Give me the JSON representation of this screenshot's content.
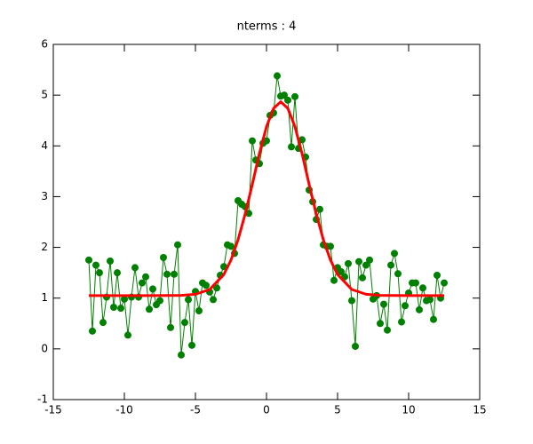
{
  "chart_data": {
    "type": "line",
    "title": "nterms : 4",
    "xlim": [
      -15,
      15
    ],
    "ylim": [
      -1,
      6
    ],
    "xticks": [
      -15,
      -10,
      -5,
      0,
      5,
      10,
      15
    ],
    "yticks": [
      -1,
      0,
      1,
      2,
      3,
      4,
      5,
      6
    ],
    "series": [
      {
        "color": "#008000",
        "marker": "circle",
        "x": [
          -12.5,
          -12.25,
          -12,
          -11.75,
          -11.5,
          -11.25,
          -11,
          -10.75,
          -10.5,
          -10.25,
          -10,
          -9.75,
          -9.5,
          -9.25,
          -9,
          -8.75,
          -8.5,
          -8.25,
          -8,
          -7.75,
          -7.5,
          -7.25,
          -7,
          -6.75,
          -6.5,
          -6.25,
          -6,
          -5.75,
          -5.5,
          -5.25,
          -5,
          -4.75,
          -4.5,
          -4.25,
          -4,
          -3.75,
          -3.5,
          -3.25,
          -3,
          -2.75,
          -2.5,
          -2.25,
          -2,
          -1.75,
          -1.5,
          -1.25,
          -1,
          -0.75,
          -0.5,
          -0.25,
          0,
          0.25,
          0.5,
          0.75,
          1,
          1.25,
          1.5,
          1.75,
          2,
          2.25,
          2.5,
          2.75,
          3,
          3.25,
          3.5,
          3.75,
          4,
          4.25,
          4.5,
          4.75,
          5,
          5.25,
          5.5,
          5.75,
          6,
          6.25,
          6.5,
          6.75,
          7,
          7.25,
          7.5,
          7.75,
          8,
          8.25,
          8.5,
          8.75,
          9,
          9.25,
          9.5,
          9.75,
          10,
          10.25,
          10.5,
          10.75,
          11,
          11.25,
          11.5,
          11.75,
          12,
          12.25,
          12.5
        ],
        "values": [
          1.75,
          0.35,
          1.65,
          1.5,
          0.52,
          1.02,
          1.73,
          0.82,
          1.5,
          0.8,
          0.98,
          0.27,
          1.02,
          1.6,
          1.02,
          1.3,
          1.42,
          0.78,
          1.18,
          0.87,
          0.95,
          1.8,
          1.47,
          0.42,
          1.47,
          2.05,
          -0.12,
          0.52,
          0.97,
          0.07,
          1.13,
          0.75,
          1.3,
          1.25,
          1.12,
          0.97,
          1.2,
          1.45,
          1.62,
          2.05,
          2.02,
          1.88,
          2.92,
          2.85,
          2.8,
          2.67,
          4.1,
          3.72,
          3.65,
          4.05,
          4.1,
          4.6,
          4.65,
          5.38,
          4.98,
          5.0,
          4.9,
          3.98,
          4.97,
          3.95,
          4.12,
          3.78,
          3.13,
          2.9,
          2.55,
          2.75,
          2.05,
          2.02,
          2.02,
          1.35,
          1.6,
          1.52,
          1.42,
          1.68,
          0.95,
          0.05,
          1.72,
          1.4,
          1.65,
          1.75,
          0.98,
          1.05,
          0.5,
          0.88,
          0.37,
          1.65,
          1.88,
          1.48,
          0.53,
          0.85,
          1.1,
          1.3,
          1.3,
          0.77,
          1.2,
          0.95,
          0.97,
          0.58,
          1.45,
          1.0,
          1.3
        ]
      },
      {
        "color": "#ff0000",
        "x": [
          -12.5,
          -10,
          -8,
          -6,
          -5,
          -4,
          -3,
          -2.5,
          -2,
          -1.5,
          -1,
          -0.5,
          0,
          0.5,
          1,
          1.5,
          2,
          2.5,
          3,
          3.5,
          4,
          4.5,
          5,
          6,
          7,
          8,
          10,
          12.5
        ],
        "values": [
          1.05,
          1.05,
          1.05,
          1.054,
          1.076,
          1.17,
          1.466,
          1.75,
          2.15,
          2.66,
          3.24,
          3.85,
          4.38,
          4.74,
          4.87,
          4.74,
          4.38,
          3.85,
          3.24,
          2.66,
          2.15,
          1.75,
          1.466,
          1.17,
          1.076,
          1.054,
          1.05,
          1.05
        ]
      }
    ]
  }
}
